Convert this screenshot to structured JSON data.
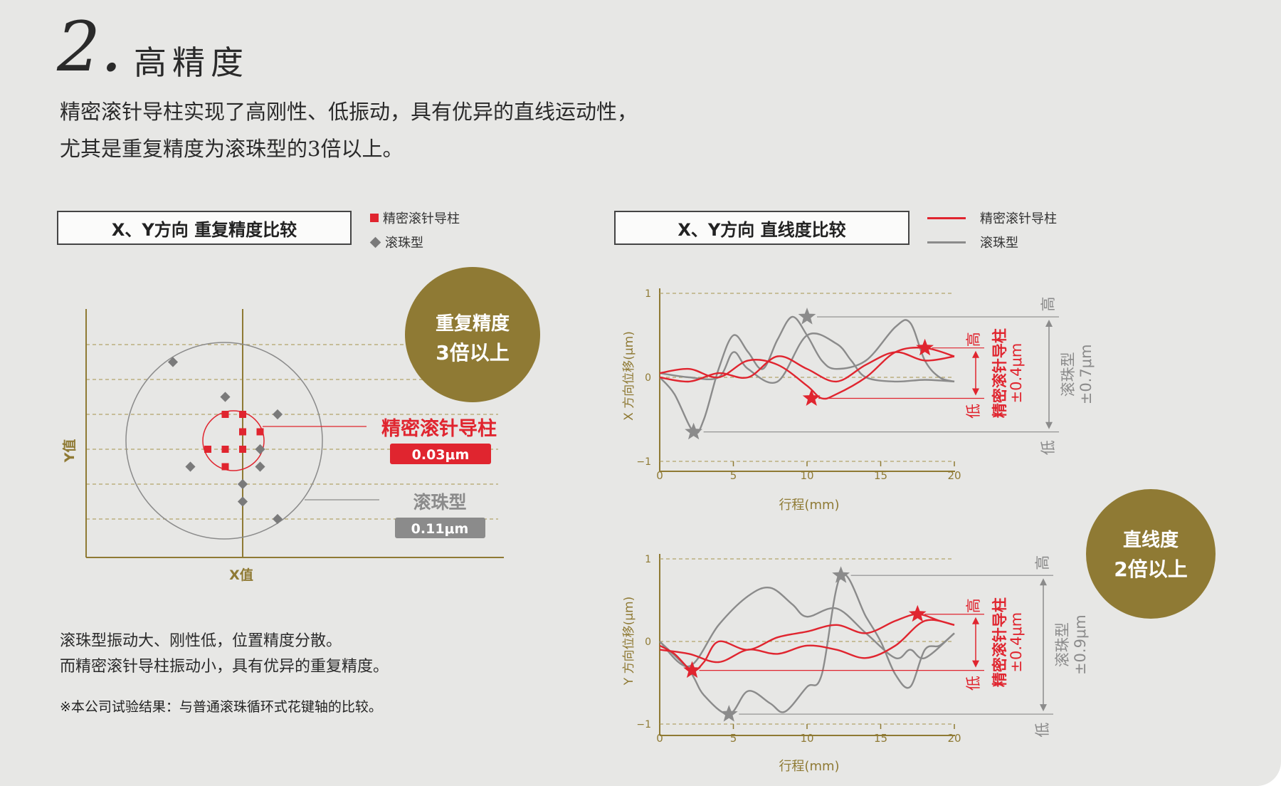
{
  "heading": {
    "number": "2.",
    "title": "高精度",
    "intro_line1": "精密滚针导柱实现了高刚性、低振动，具有优异的直线运动性，",
    "intro_line2": "尤其是重复精度为滚珠型的3倍以上。"
  },
  "left_panel": {
    "title": "X、Y方向 重复精度比较",
    "legend": [
      {
        "label": "精密滚针导柱",
        "symbol": "square",
        "color": "#e0252f"
      },
      {
        "label": "滚珠型",
        "symbol": "diamond",
        "color": "#7a7a7a"
      }
    ],
    "badge": {
      "line1": "重复精度",
      "line2": "3倍以上",
      "color": "#8f7a34"
    },
    "axis_x_label": "X值",
    "axis_y_label": "Y值",
    "callout_needle": {
      "label": "精密滚针导柱",
      "value": "0.03μm",
      "color": "#e0252f"
    },
    "callout_ball": {
      "label": "滚珠型",
      "value": "0.11μm",
      "color": "#8b8b8b"
    },
    "note_line1": "滚珠型振动大、刚性低，位置精度分散。",
    "note_line2": "而精密滚针导柱振动小，具有优异的重复精度。",
    "footnote": "※本公司试验结果：与普通滚珠循环式花键轴的比较。"
  },
  "right_panel": {
    "title": "X、Y方向 直线度比较",
    "legend": [
      {
        "label": "精密滚针导柱",
        "symbol": "line",
        "color": "#e0252f"
      },
      {
        "label": "滚珠型",
        "symbol": "line",
        "color": "#8b8b8b"
      }
    ],
    "badge": {
      "line1": "直线度",
      "line2": "2倍以上",
      "color": "#8f7a34"
    },
    "range_high": "高",
    "range_low": "低",
    "needle_range_label": "精密滚针导柱",
    "ball_range_label": "滚珠型"
  },
  "chart_data": [
    {
      "type": "scatter",
      "title": "X、Y方向 重复精度比较",
      "xlabel": "X值",
      "ylabel": "Y值",
      "series": [
        {
          "name": "精密滚针导柱",
          "marker": "square",
          "spread": "0.03μm",
          "points": [
            [
              -1,
              2
            ],
            [
              0,
              2
            ],
            [
              0,
              1
            ],
            [
              1,
              1
            ],
            [
              -2,
              0
            ],
            [
              -1,
              0
            ],
            [
              0,
              0
            ],
            [
              -1,
              -1
            ]
          ]
        },
        {
          "name": "滚珠型",
          "marker": "diamond",
          "spread": "0.11μm",
          "points": [
            [
              -4,
              5
            ],
            [
              -1,
              3
            ],
            [
              2,
              2
            ],
            [
              1,
              0
            ],
            [
              -3,
              -1
            ],
            [
              1,
              -1
            ],
            [
              0,
              -2
            ],
            [
              0,
              -3
            ],
            [
              2,
              -4
            ]
          ]
        }
      ]
    },
    {
      "type": "line",
      "title": "",
      "xlabel": "行程(mm)",
      "ylabel": "X 方向位移(μm)",
      "xlim": [
        0,
        20
      ],
      "ylim": [
        -1,
        1
      ],
      "xticks": [
        "0",
        "5",
        "10",
        "15",
        "20"
      ],
      "yticks": [
        "1",
        "0",
        "−1"
      ],
      "series": [
        {
          "name": "精密滚针导柱",
          "color": "#e0252f",
          "x": [
            0,
            2,
            4,
            6,
            8,
            10,
            11,
            12,
            14,
            16,
            18,
            20
          ],
          "y": [
            0.05,
            0.1,
            0.0,
            0.2,
            0.15,
            -0.1,
            -0.25,
            -0.2,
            0.0,
            0.3,
            0.35,
            0.25
          ],
          "star_low": [
            10.3,
            -0.25
          ],
          "star_high": [
            18.0,
            0.35
          ]
        },
        {
          "name": "精密滚针导柱",
          "color": "#e0252f",
          "x": [
            0,
            2,
            4,
            6,
            8,
            10,
            12,
            14,
            16,
            18,
            20
          ],
          "y": [
            0.0,
            -0.05,
            0.05,
            0.0,
            0.25,
            0.1,
            -0.05,
            0.15,
            0.3,
            0.2,
            0.25
          ],
          "stars": false
        },
        {
          "name": "滚珠型",
          "color": "#8b8b8b",
          "x": [
            0,
            1,
            2.3,
            3,
            4,
            5,
            6,
            7,
            8,
            9,
            10,
            11,
            12,
            14,
            16,
            17,
            18,
            19,
            20
          ],
          "y": [
            0.0,
            -0.2,
            -0.65,
            -0.5,
            0.1,
            0.5,
            0.3,
            0.1,
            0.45,
            0.72,
            0.5,
            0.2,
            0.1,
            0.2,
            0.6,
            0.65,
            0.2,
            0.0,
            -0.05
          ],
          "star_low": [
            2.3,
            -0.65
          ],
          "star_high": [
            10.0,
            0.72
          ]
        },
        {
          "name": "滚珠型",
          "color": "#8b8b8b",
          "x": [
            0,
            2,
            4,
            5,
            6,
            8,
            10,
            12,
            13,
            14,
            16,
            18,
            20
          ],
          "y": [
            0.05,
            0.0,
            0.0,
            0.3,
            0.1,
            -0.05,
            0.5,
            0.4,
            0.2,
            0.0,
            -0.05,
            -0.03,
            -0.05
          ],
          "stars": false
        }
      ]
    },
    {
      "type": "line",
      "title": "",
      "xlabel": "行程(mm)",
      "ylabel": "Y 方向位移(μm)",
      "xlim": [
        0,
        20
      ],
      "ylim": [
        -1,
        1
      ],
      "xticks": [
        "0",
        "5",
        "10",
        "15",
        "20"
      ],
      "yticks": [
        "1",
        "0",
        "−1"
      ],
      "series": [
        {
          "name": "精密滚针导柱",
          "color": "#e0252f",
          "x": [
            0,
            1,
            2.2,
            3,
            4,
            6,
            8,
            10,
            12,
            14,
            16,
            17.5,
            19,
            20
          ],
          "y": [
            -0.05,
            -0.15,
            -0.35,
            -0.25,
            0.0,
            -0.1,
            0.05,
            0.12,
            0.2,
            0.1,
            0.25,
            0.33,
            0.25,
            0.2
          ],
          "star_low": [
            2.2,
            -0.35
          ],
          "star_high": [
            17.5,
            0.33
          ]
        },
        {
          "name": "精密滚针导柱",
          "color": "#e0252f",
          "x": [
            0,
            2,
            4,
            6,
            8,
            10,
            12,
            14,
            16,
            18,
            20
          ],
          "y": [
            -0.1,
            -0.15,
            -0.25,
            -0.1,
            -0.15,
            -0.05,
            -0.1,
            -0.2,
            -0.05,
            0.25,
            0.2
          ],
          "stars": false
        },
        {
          "name": "滚珠型",
          "color": "#8b8b8b",
          "x": [
            0,
            2,
            3,
            4.7,
            6,
            7.5,
            8.5,
            10,
            11,
            12.3,
            14,
            15,
            16,
            17,
            18,
            19,
            20
          ],
          "y": [
            0.0,
            -0.35,
            -0.65,
            -0.88,
            -0.6,
            -0.75,
            -0.85,
            -0.55,
            -0.4,
            0.8,
            0.3,
            0.0,
            -0.4,
            -0.55,
            -0.1,
            -0.05,
            0.1
          ],
          "star_low": [
            4.7,
            -0.88
          ],
          "star_high": [
            12.3,
            0.8
          ]
        },
        {
          "name": "滚珠型",
          "color": "#8b8b8b",
          "x": [
            0,
            2,
            4,
            6,
            7.5,
            9,
            10,
            12,
            14,
            16,
            17,
            18,
            20
          ],
          "y": [
            0.0,
            -0.3,
            0.2,
            0.55,
            0.65,
            0.45,
            0.3,
            0.4,
            0.1,
            -0.2,
            -0.1,
            -0.2,
            0.1
          ],
          "stars": false
        }
      ]
    }
  ]
}
